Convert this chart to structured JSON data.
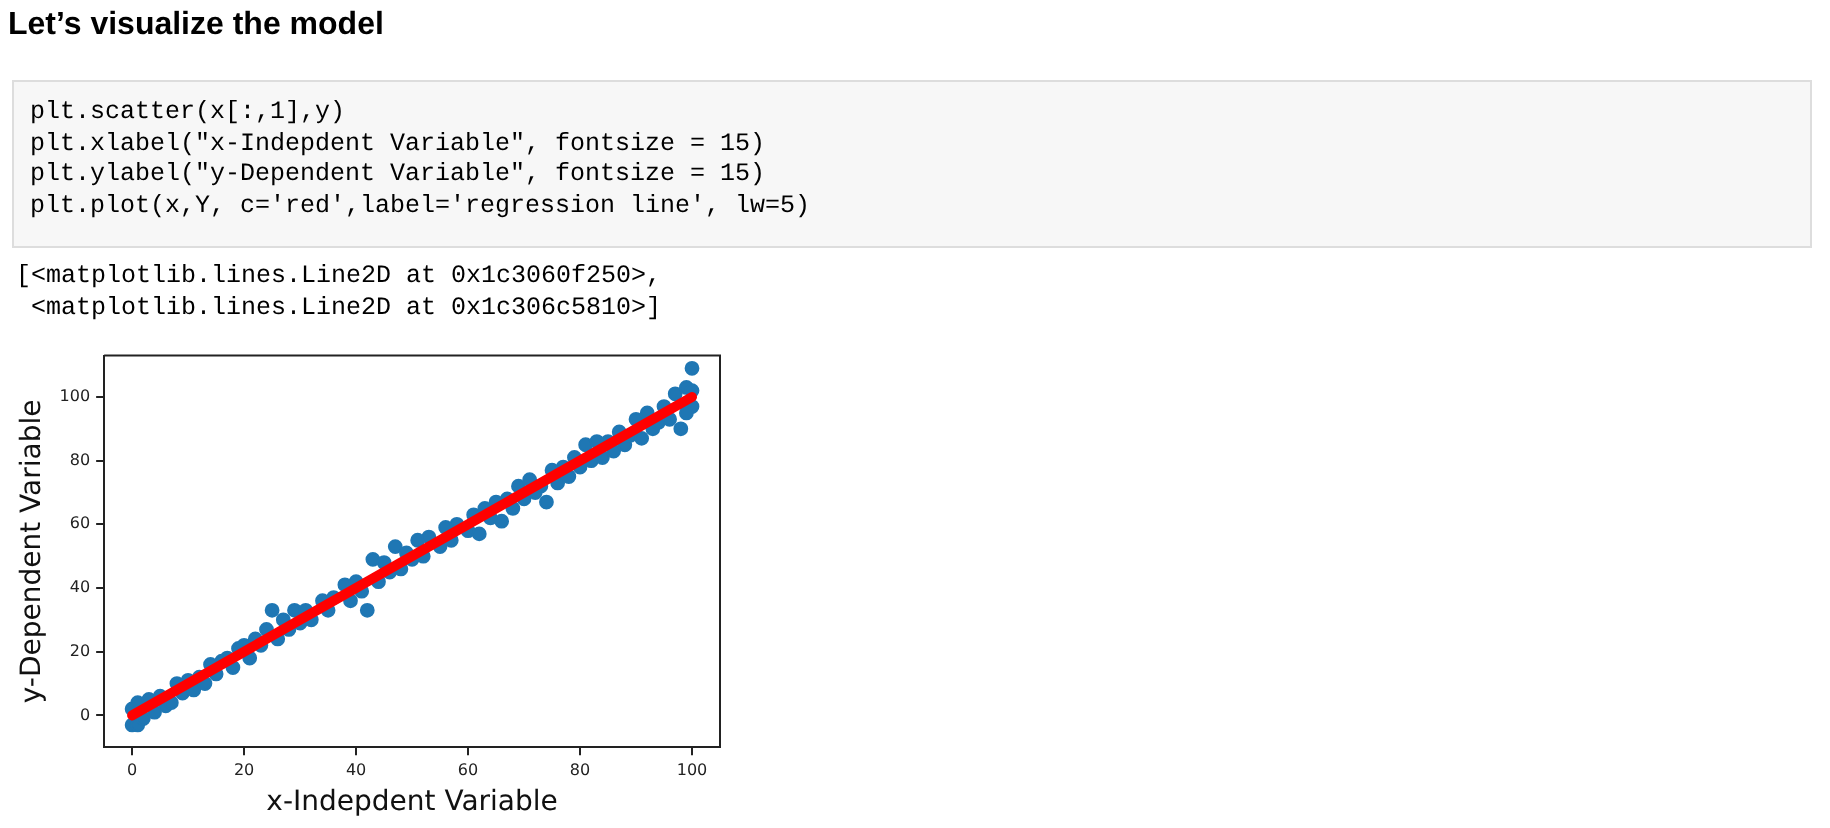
{
  "chart_data": {
    "type": "scatter",
    "title": "Let’s visualize the model",
    "annotations": [
      "plt.scatter(x[:,1],y)",
      "plt.xlabel(\"x-Indepdent Variable\", fontsize = 15)",
      "plt.ylabel(\"y-Dependent Variable\", fontsize = 15)",
      "plt.plot(x,Y, c='red',label='regression line', lw=5)",
      "[<matplotlib.lines.Line2D at 0x1c3060f250>,",
      " <matplotlib.lines.Line2D at 0x1c306c5810>]"
    ],
    "xlabel": "x-Indepdent Variable",
    "ylabel": "y-Dependent Variable",
    "xlim": [
      -5,
      105
    ],
    "ylim": [
      -10,
      113
    ],
    "xticks": [
      0,
      20,
      40,
      60,
      80,
      100
    ],
    "yticks": [
      0,
      20,
      40,
      60,
      80,
      100
    ],
    "grid": false,
    "legend": false,
    "marker": "circle",
    "series": [
      {
        "type": "scatter",
        "color": "#1f77b4",
        "x": [
          0,
          0,
          1,
          1,
          2,
          3,
          4,
          5,
          6,
          7,
          8,
          9,
          10,
          11,
          12,
          13,
          14,
          15,
          16,
          17,
          18,
          19,
          20,
          21,
          22,
          23,
          24,
          25,
          26,
          27,
          28,
          29,
          30,
          31,
          32,
          34,
          35,
          36,
          38,
          39,
          40,
          41,
          42,
          43,
          44,
          45,
          46,
          47,
          48,
          49,
          50,
          51,
          52,
          53,
          55,
          56,
          57,
          58,
          60,
          61,
          62,
          63,
          64,
          65,
          66,
          67,
          68,
          69,
          70,
          71,
          72,
          73,
          74,
          75,
          76,
          77,
          78,
          79,
          80,
          81,
          82,
          83,
          84,
          85,
          86,
          87,
          88,
          89,
          90,
          91,
          92,
          93,
          94,
          95,
          96,
          97,
          98,
          99,
          100,
          100,
          99,
          100
        ],
        "values": [
          2,
          -3,
          -3,
          4,
          -1,
          5,
          1,
          6,
          3,
          4,
          10,
          7,
          11,
          8,
          12,
          10,
          16,
          13,
          17,
          18,
          15,
          21,
          22,
          18,
          24,
          22,
          27,
          33,
          24,
          30,
          27,
          33,
          29,
          33,
          30,
          36,
          33,
          37,
          41,
          36,
          42,
          39,
          33,
          49,
          42,
          48,
          45,
          53,
          46,
          51,
          49,
          55,
          50,
          56,
          53,
          59,
          55,
          60,
          58,
          63,
          57,
          65,
          62,
          67,
          61,
          68,
          65,
          72,
          68,
          74,
          70,
          72,
          67,
          77,
          73,
          78,
          75,
          81,
          78,
          85,
          80,
          86,
          81,
          86,
          83,
          89,
          85,
          88,
          93,
          87,
          95,
          90,
          92,
          97,
          93,
          101,
          90,
          103,
          109,
          97,
          95,
          102
        ]
      },
      {
        "type": "line",
        "color": "#ff0000",
        "x": [
          0,
          100
        ],
        "values": [
          0,
          100
        ],
        "marker": "none",
        "line_style": "solid"
      }
    ]
  }
}
